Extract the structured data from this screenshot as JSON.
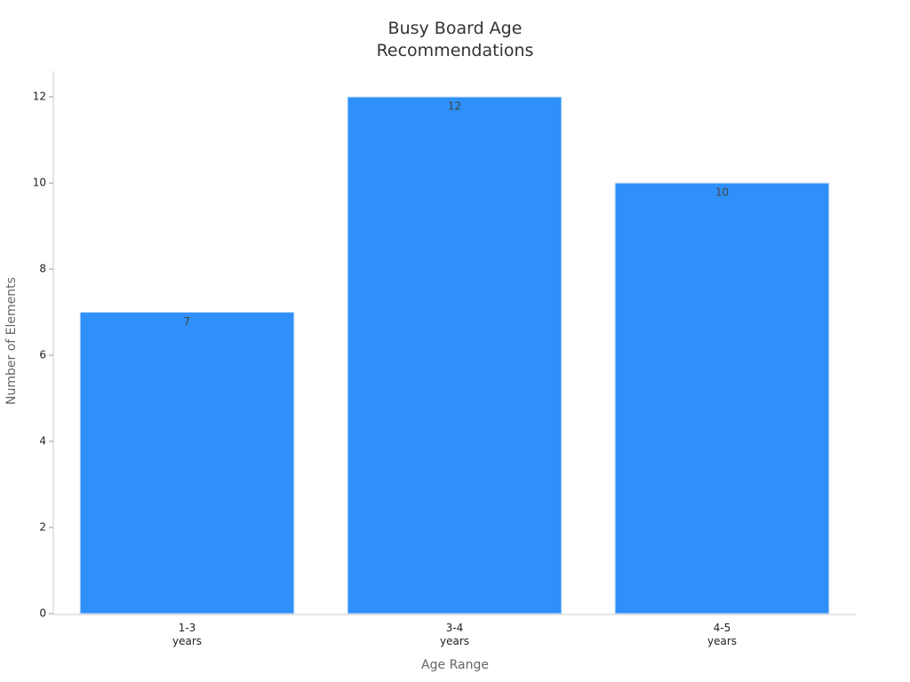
{
  "chart_data": {
    "type": "bar",
    "title": "Busy Board Age Recommendations",
    "x_label": "Age Range",
    "y_label": "Number of Elements",
    "categories": [
      "1-3 years",
      "3-4 years",
      "4-5 years"
    ],
    "values": [
      7,
      12,
      10
    ],
    "color": "#2e90f8",
    "ylim": [
      0,
      12.6
    ],
    "yticks": [
      0,
      2,
      4,
      6,
      8,
      10,
      12
    ],
    "grid": false
  }
}
